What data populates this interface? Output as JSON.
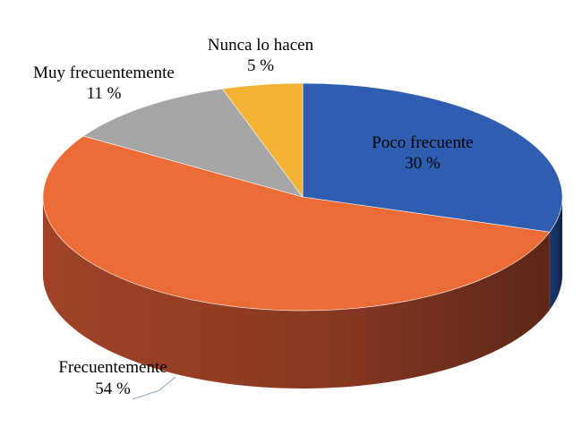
{
  "chart_data": {
    "type": "pie",
    "title": "",
    "slices": [
      {
        "label": "Poco frecuente",
        "value": 30,
        "value_label": "30 %",
        "color": "#2F5EB0",
        "side": "#1B3A78"
      },
      {
        "label": "Frecuentemente",
        "value": 54,
        "value_label": "54 %",
        "color": "#EC6C37",
        "side": "#A8462A"
      },
      {
        "label": "Muy frecuentemente",
        "value": 11,
        "value_label": "11 %",
        "color": "#A6A6A6",
        "side": "#6E6E6E"
      },
      {
        "label": "Nunca lo hacen",
        "value": 5,
        "value_label": "5 %",
        "color": "#F2B233",
        "side": "#B07F1C"
      }
    ],
    "style": "3d-perspective",
    "legend": "none"
  }
}
